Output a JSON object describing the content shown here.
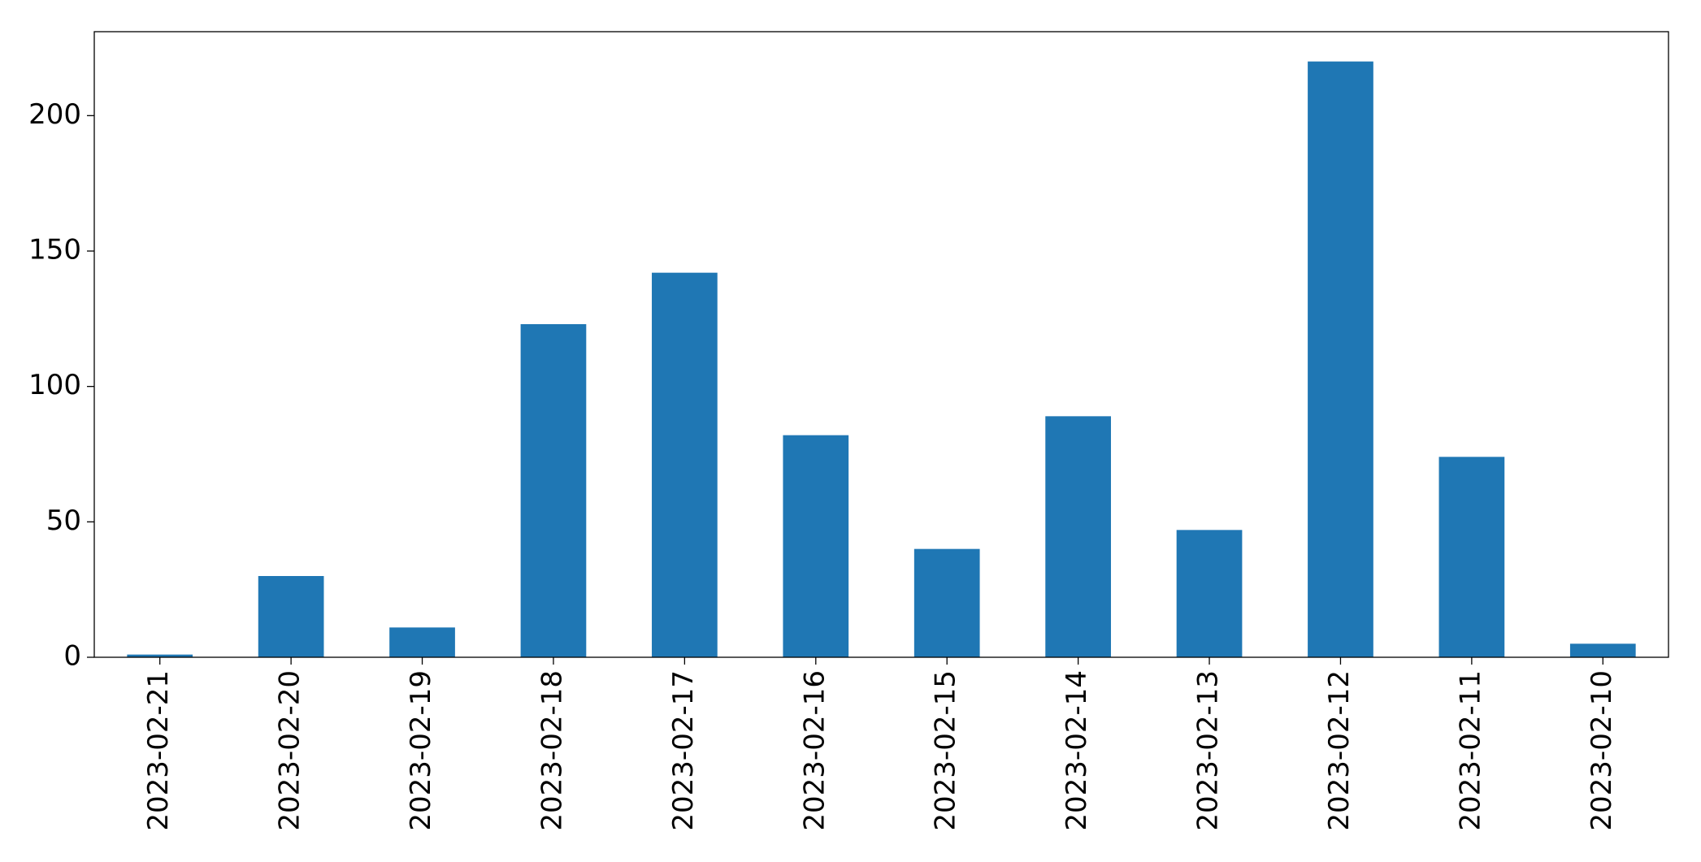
{
  "chart_data": {
    "type": "bar",
    "categories": [
      "2023-02-21",
      "2023-02-20",
      "2023-02-19",
      "2023-02-18",
      "2023-02-17",
      "2023-02-16",
      "2023-02-15",
      "2023-02-14",
      "2023-02-13",
      "2023-02-12",
      "2023-02-11",
      "2023-02-10"
    ],
    "values": [
      1,
      30,
      11,
      123,
      142,
      82,
      40,
      89,
      47,
      220,
      74,
      5
    ],
    "color": "#1f77b4",
    "ylim": [
      0,
      231
    ],
    "yticks": [
      0,
      50,
      100,
      150,
      200
    ],
    "grid": false
  }
}
